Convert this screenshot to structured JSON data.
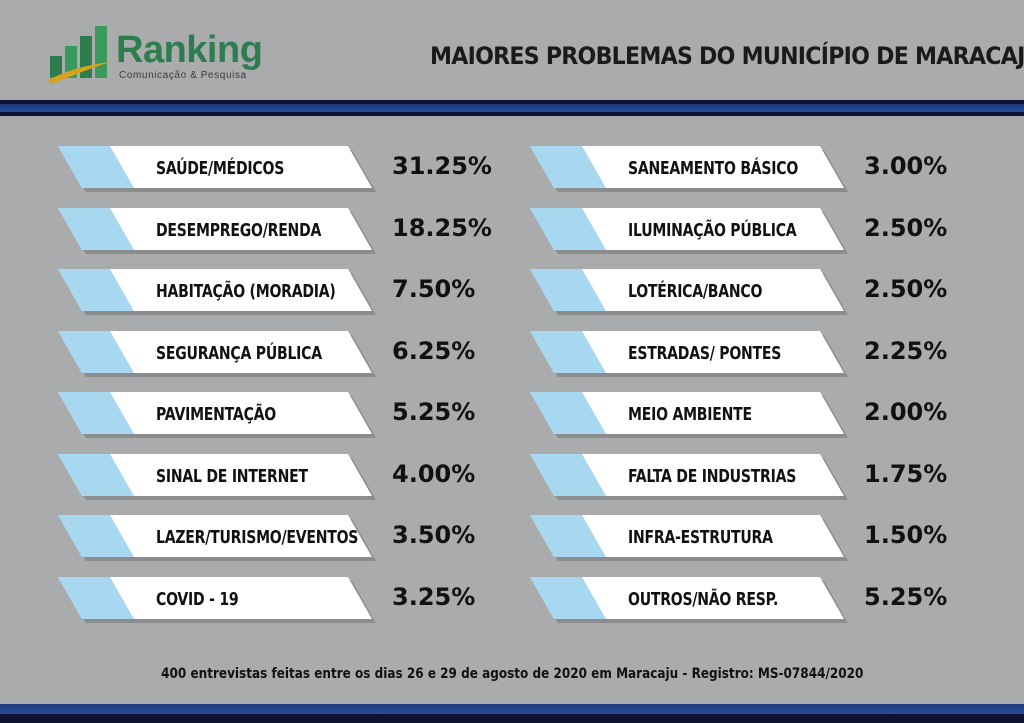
{
  "brand": {
    "name": "Ranking",
    "tagline": "Comunicação & Pesquisa",
    "colors": {
      "green": "#2e7d4f",
      "gold": "#d9a21b",
      "navy": "#1e3a7a",
      "light_blue": "#a8d8f0"
    }
  },
  "chart_data": {
    "type": "table",
    "title": "MAIORES PROBLEMAS DO MUNICÍPIO DE MARACAJU",
    "columns": [
      {
        "items": [
          {
            "label": "SAÚDE/MÉDICOS",
            "value": "31.25%"
          },
          {
            "label": "DESEMPREGO/RENDA",
            "value": "18.25%"
          },
          {
            "label": "HABITAÇÃO (MORADIA)",
            "value": "7.50%"
          },
          {
            "label": "SEGURANÇA PÚBLICA",
            "value": "6.25%"
          },
          {
            "label": "PAVIMENTAÇÃO",
            "value": "5.25%"
          },
          {
            "label": "SINAL DE INTERNET",
            "value": "4.00%"
          },
          {
            "label": "LAZER/TURISMO/EVENTOS",
            "value": "3.50%"
          },
          {
            "label": "COVID - 19",
            "value": "3.25%"
          }
        ]
      },
      {
        "items": [
          {
            "label": "SANEAMENTO BÁSICO",
            "value": "3.00%"
          },
          {
            "label": "ILUMINAÇÃO PÚBLICA",
            "value": "2.50%"
          },
          {
            "label": "LOTÉRICA/BANCO",
            "value": "2.50%"
          },
          {
            "label": "ESTRADAS/ PONTES",
            "value": "2.25%"
          },
          {
            "label": "MEIO AMBIENTE",
            "value": "2.00%"
          },
          {
            "label": "FALTA DE INDUSTRIAS",
            "value": "1.75%"
          },
          {
            "label": "INFRA-ESTRUTURA",
            "value": "1.50%"
          },
          {
            "label": "OUTROS/NÃO RESP.",
            "value": "5.25%"
          }
        ]
      }
    ]
  },
  "footer": {
    "note": "400 entrevistas feitas entre os  dias 26 e 29 de agosto de 2020 em Maracaju - Registro:  MS-07844/2020"
  }
}
